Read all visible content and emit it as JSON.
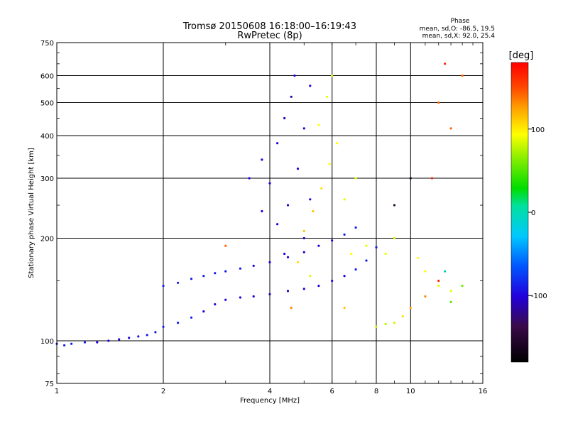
{
  "chart_data": {
    "type": "scatter",
    "title": "Tromsø 20150608 16:18:00–16:19:43",
    "subtitle": "RwPretec (8p)",
    "xlabel": "Frequency [MHz]",
    "ylabel": "Stationary phase Virtual Height [km]",
    "x_scale": "log",
    "y_scale": "log",
    "xlim": [
      1,
      16
    ],
    "ylim": [
      75,
      750
    ],
    "x_ticks": [
      "1",
      "2",
      "4",
      "6",
      "8",
      "10",
      "16"
    ],
    "y_ticks": [
      "75",
      "100",
      "200",
      "300",
      "400",
      "500",
      "600",
      "750"
    ],
    "grid": true,
    "phase_stats": {
      "heading": "Phase",
      "line_O": "mean, sd,O: -86.5, 19.5",
      "line_X": "mean, sd,X:  92.0, 25.4"
    },
    "colorbar": {
      "label": "[deg]",
      "ticks": [
        "100",
        "0",
        "-100"
      ],
      "range": [
        -180,
        180
      ]
    },
    "series": [
      {
        "values": [
          [
            1.0,
            98,
            -100
          ],
          [
            1.05,
            97,
            -100
          ],
          [
            1.1,
            98,
            -100
          ],
          [
            1.2,
            99,
            -100
          ],
          [
            1.3,
            99,
            -110
          ],
          [
            1.4,
            100,
            -110
          ],
          [
            1.5,
            101,
            -110
          ],
          [
            1.6,
            102,
            -110
          ],
          [
            1.7,
            103,
            -100
          ],
          [
            1.8,
            104,
            -100
          ],
          [
            1.9,
            106,
            -100
          ],
          [
            2.0,
            110,
            -100
          ],
          [
            2.2,
            113,
            -100
          ],
          [
            2.4,
            117,
            -100
          ],
          [
            2.6,
            122,
            -110
          ],
          [
            2.8,
            128,
            -110
          ],
          [
            3.0,
            132,
            -110
          ],
          [
            3.3,
            134,
            -110
          ],
          [
            3.6,
            135,
            -110
          ],
          [
            4.0,
            137,
            -120
          ],
          [
            4.5,
            140,
            -120
          ],
          [
            5.0,
            142,
            -110
          ],
          [
            5.5,
            145,
            -110
          ],
          [
            6.0,
            150,
            -110
          ],
          [
            6.5,
            155,
            -110
          ],
          [
            7.0,
            162,
            -100
          ],
          [
            7.5,
            172,
            -100
          ],
          [
            8.0,
            188,
            -100
          ]
        ]
      },
      {
        "values": [
          [
            2.0,
            145,
            -100
          ],
          [
            2.2,
            148,
            -100
          ],
          [
            2.4,
            152,
            -100
          ],
          [
            2.6,
            155,
            -100
          ],
          [
            2.8,
            158,
            -100
          ],
          [
            3.0,
            160,
            -100
          ],
          [
            3.3,
            163,
            -100
          ],
          [
            3.6,
            166,
            -110
          ],
          [
            4.0,
            170,
            -110
          ],
          [
            4.5,
            176,
            -110
          ],
          [
            5.0,
            182,
            -110
          ],
          [
            5.5,
            190,
            -110
          ],
          [
            6.0,
            197,
            -110
          ],
          [
            6.5,
            205,
            -100
          ],
          [
            7.0,
            215,
            -100
          ]
        ]
      },
      {
        "values": [
          [
            3.5,
            300,
            -110
          ],
          [
            3.8,
            340,
            -110
          ],
          [
            4.0,
            290,
            -110
          ],
          [
            4.2,
            380,
            -110
          ],
          [
            4.4,
            450,
            -120
          ],
          [
            4.6,
            520,
            -120
          ],
          [
            4.7,
            600,
            -110
          ],
          [
            4.5,
            250,
            -110
          ],
          [
            4.8,
            320,
            -110
          ],
          [
            5.0,
            420,
            -110
          ],
          [
            5.2,
            560,
            -110
          ],
          [
            5.0,
            200,
            -110
          ],
          [
            4.2,
            220,
            -110
          ],
          [
            3.8,
            240,
            -110
          ],
          [
            4.4,
            180,
            -110
          ],
          [
            5.2,
            260,
            -110
          ]
        ]
      },
      {
        "values": [
          [
            5.0,
            210,
            120
          ],
          [
            5.3,
            240,
            120
          ],
          [
            5.6,
            280,
            110
          ],
          [
            5.9,
            330,
            100
          ],
          [
            6.2,
            380,
            100
          ],
          [
            5.8,
            520,
            90
          ],
          [
            6.0,
            600,
            80
          ],
          [
            5.5,
            430,
            100
          ],
          [
            6.5,
            260,
            90
          ],
          [
            7.0,
            300,
            90
          ],
          [
            4.8,
            170,
            110
          ],
          [
            5.2,
            155,
            90
          ],
          [
            6.8,
            180,
            100
          ],
          [
            7.5,
            190,
            90
          ],
          [
            8.5,
            180,
            90
          ],
          [
            9.0,
            200,
            80
          ],
          [
            10.5,
            175,
            100
          ],
          [
            11.0,
            160,
            100
          ],
          [
            12.0,
            145,
            90
          ],
          [
            13.0,
            140,
            90
          ]
        ]
      },
      {
        "values": [
          [
            8.0,
            110,
            80
          ],
          [
            8.5,
            112,
            70
          ],
          [
            9.0,
            113,
            80
          ],
          [
            9.5,
            118,
            110
          ],
          [
            10.0,
            125,
            130
          ],
          [
            11.0,
            135,
            140
          ],
          [
            12.0,
            150,
            170
          ],
          [
            12.5,
            160,
            -30
          ],
          [
            13.0,
            130,
            30
          ],
          [
            14.0,
            145,
            40
          ],
          [
            12.0,
            500,
            150
          ],
          [
            12.5,
            650,
            170
          ],
          [
            13.0,
            420,
            150
          ],
          [
            14.0,
            600,
            150
          ],
          [
            11.5,
            300,
            170
          ],
          [
            3.0,
            190,
            150
          ],
          [
            4.6,
            125,
            140
          ],
          [
            6.5,
            125,
            120
          ],
          [
            9.0,
            250,
            -150
          ],
          [
            10.0,
            300,
            -160
          ]
        ]
      }
    ]
  }
}
